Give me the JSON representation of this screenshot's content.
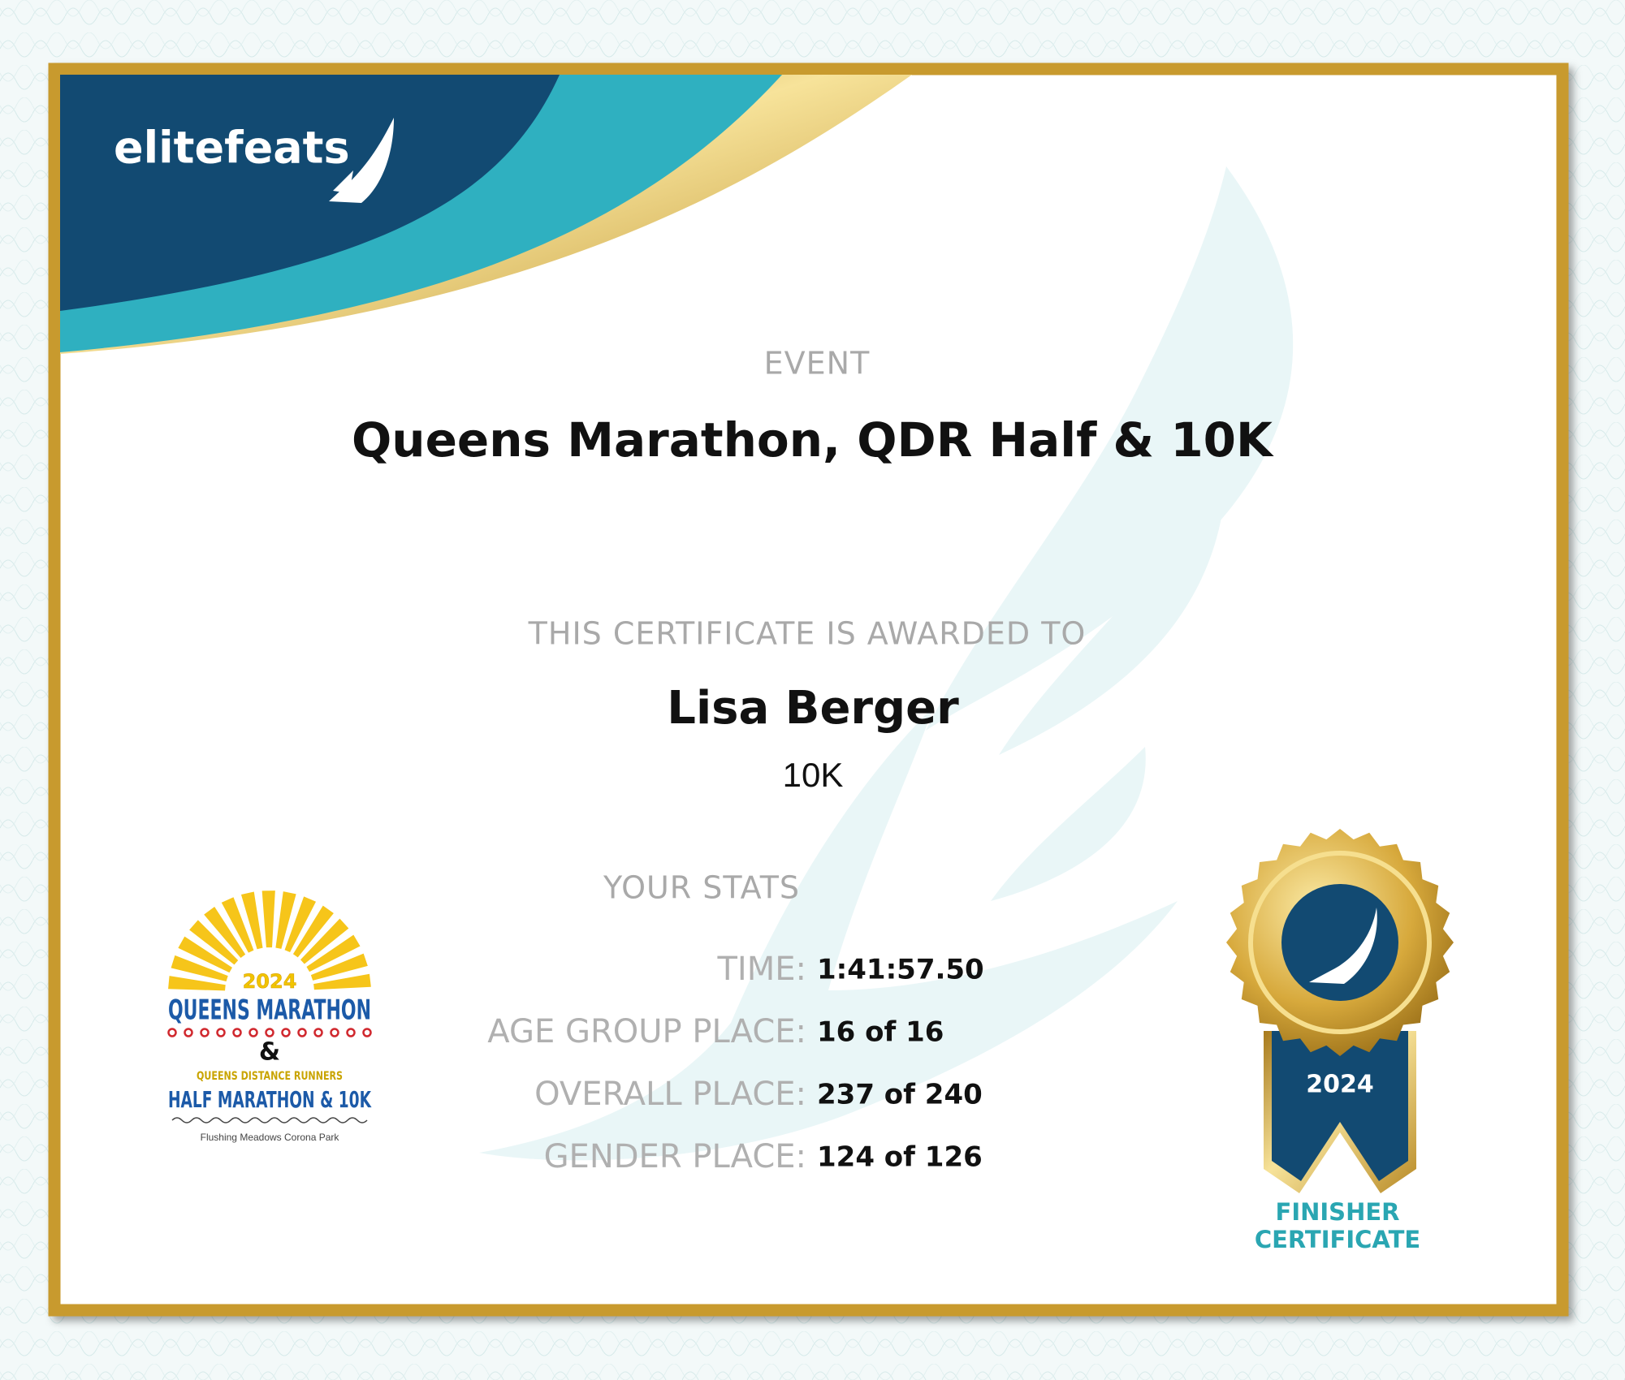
{
  "header": {
    "brand": "elitefeats"
  },
  "certificate": {
    "event_label": "EVENT",
    "event": "Queens Marathon, QDR Half & 10K",
    "awarded_label": "THIS CERTIFICATE IS AWARDED TO",
    "name": "Lisa Berger",
    "distance": "10K",
    "stats_label": "YOUR STATS",
    "stats": [
      {
        "label": "TIME:",
        "value": "1:41:57.50"
      },
      {
        "label": "AGE GROUP PLACE:",
        "value": "16 of 16"
      },
      {
        "label": "OVERALL PLACE:",
        "value": "237 of 240"
      },
      {
        "label": "GENDER PLACE:",
        "value": "124 of 126"
      }
    ]
  },
  "race_logo": {
    "year": "2024",
    "title": "QUEENS MARATHON",
    "ampersand": "&",
    "club": "QUEENS DISTANCE RUNNERS",
    "subtitle": "HALF MARATHON & 10K",
    "location": "Flushing Meadows Corona Park"
  },
  "medal": {
    "year": "2024",
    "caption": [
      "FINISHER",
      "CERTIFICATE"
    ]
  }
}
